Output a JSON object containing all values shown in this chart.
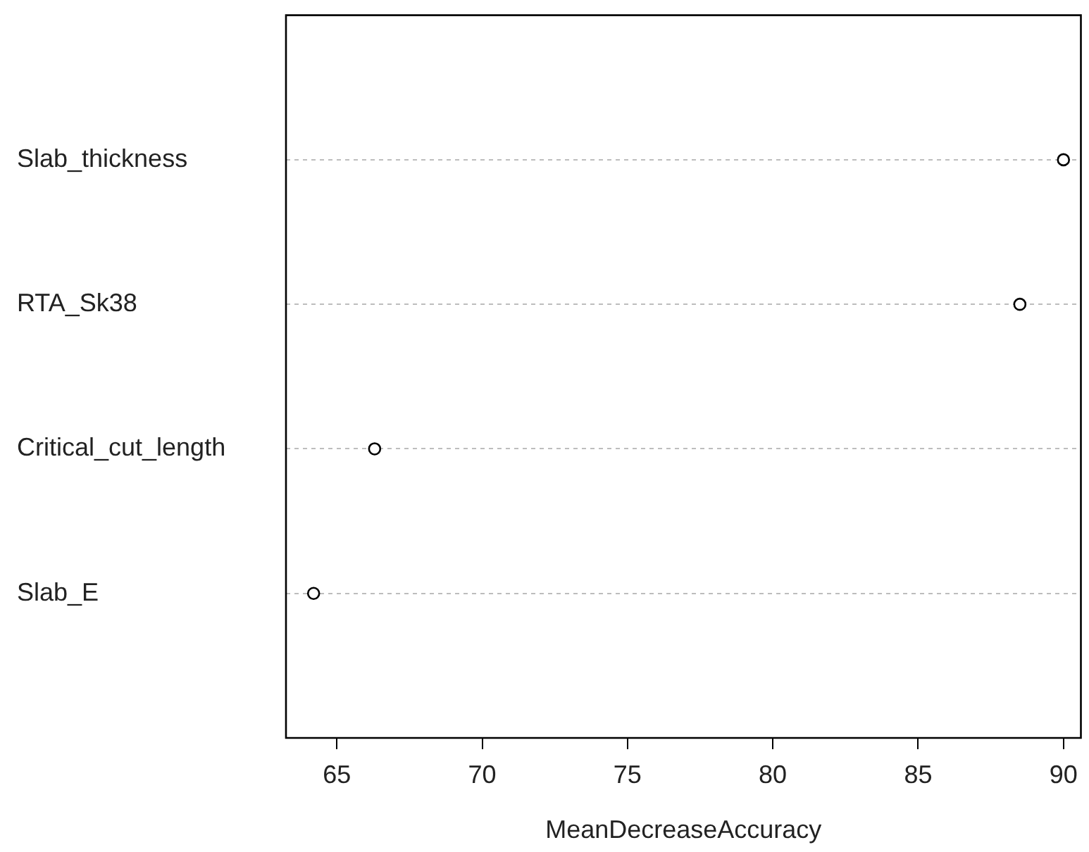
{
  "chart_data": {
    "type": "scatter",
    "orientation": "horizontal",
    "xlabel": "MeanDecreaseAccuracy",
    "categories": [
      "Slab_thickness",
      "RTA_Sk38",
      "Critical_cut_length",
      "Slab_E"
    ],
    "values": [
      90.0,
      88.5,
      66.3,
      64.2
    ],
    "color": "#000000",
    "marker": "circle",
    "grid": "y",
    "xlim": [
      63.25,
      90.6
    ],
    "xticks": [
      65,
      70,
      75,
      80,
      85,
      90
    ]
  }
}
